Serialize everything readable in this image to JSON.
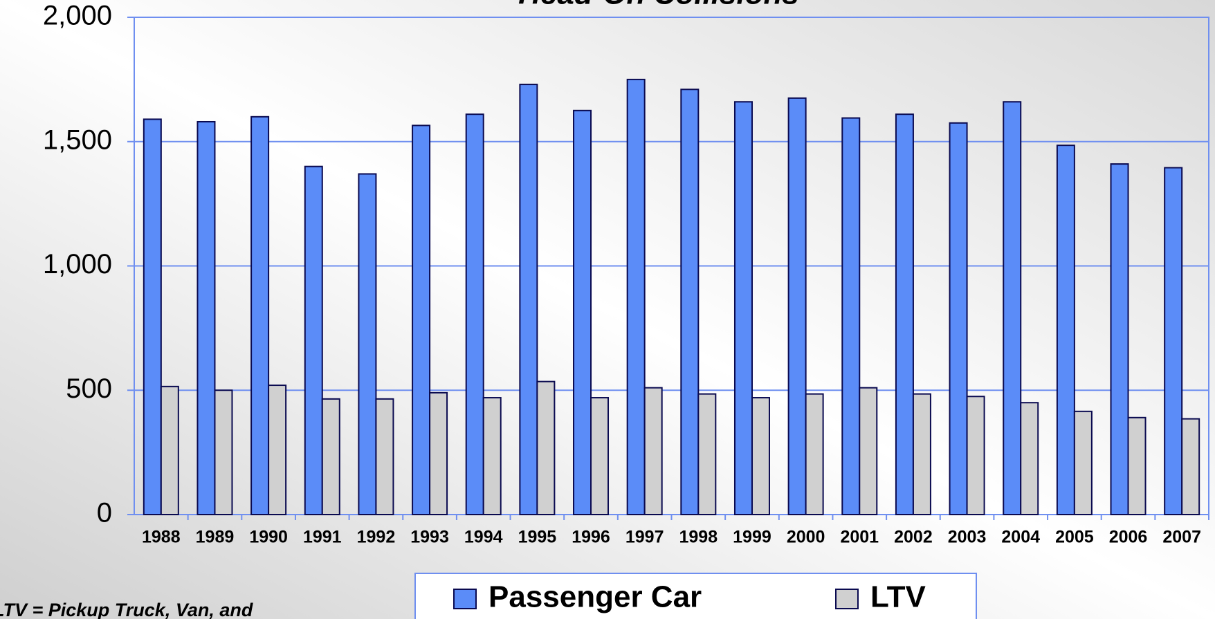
{
  "chart_data": {
    "type": "bar",
    "title": "Head-On Collisions",
    "annotation": "LTV = Pickup Truck, Van, and",
    "categories": [
      "1988",
      "1989",
      "1990",
      "1991",
      "1992",
      "1993",
      "1994",
      "1995",
      "1996",
      "1997",
      "1998",
      "1999",
      "2000",
      "2001",
      "2002",
      "2003",
      "2004",
      "2005",
      "2006",
      "2007"
    ],
    "series": [
      {
        "name": "Passenger Car",
        "color": "#5b8cf8",
        "values": [
          1590,
          1580,
          1600,
          1400,
          1370,
          1565,
          1610,
          1730,
          1625,
          1750,
          1710,
          1660,
          1675,
          1595,
          1610,
          1575,
          1660,
          1485,
          1410,
          1395
        ]
      },
      {
        "name": "LTV",
        "color": "#d0d0d0",
        "values": [
          515,
          500,
          520,
          465,
          465,
          490,
          470,
          535,
          470,
          510,
          485,
          470,
          485,
          510,
          485,
          475,
          450,
          415,
          390,
          385
        ]
      }
    ],
    "ylim": [
      0,
      2000
    ],
    "yticks": [
      0,
      500,
      {
        "value": 1000,
        "label": "1,000"
      },
      {
        "value": 1500,
        "label": "1,500"
      },
      {
        "value": 2000,
        "label": "2,000"
      }
    ],
    "grid": true,
    "legend": "bottom"
  }
}
